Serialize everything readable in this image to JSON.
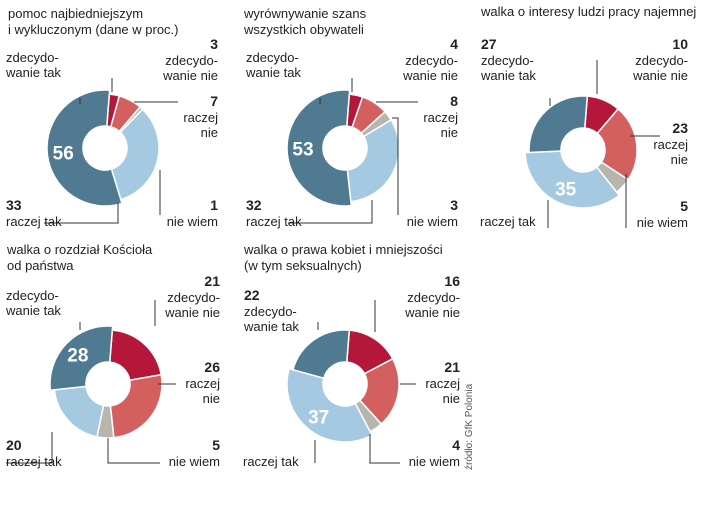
{
  "source": "źródło: GfK Polonia",
  "colors": {
    "zdecydowanie_tak": "#4f7a91",
    "raczej_tak": "#a6c9e2",
    "nie_wiem": "#b7b6ae",
    "raczej_nie": "#d45f5f",
    "zdecydowanie_nie": "#b5173a"
  },
  "chart_data": [
    {
      "type": "pie",
      "title": [
        "pomoc najbiedniejszym",
        "i wykluczonym (dane w proc.)"
      ],
      "slices": [
        {
          "label": [
            "zdecydo-",
            "wanie nie"
          ],
          "value": 3
        },
        {
          "label": [
            "raczej",
            "nie"
          ],
          "value": 7
        },
        {
          "label": [
            "nie wiem"
          ],
          "value": 1
        },
        {
          "label": [
            "raczej tak"
          ],
          "value": 33
        },
        {
          "label": [
            "zdecydo-",
            "wanie tak"
          ],
          "value": 56
        }
      ]
    },
    {
      "type": "pie",
      "title": [
        "wyrównywanie szans",
        "wszystkich obywateli"
      ],
      "slices": [
        {
          "label": [
            "zdecydo-",
            "wanie nie"
          ],
          "value": 4
        },
        {
          "label": [
            "raczej",
            "nie"
          ],
          "value": 8
        },
        {
          "label": [
            "nie wiem"
          ],
          "value": 3
        },
        {
          "label": [
            "raczej tak"
          ],
          "value": 32
        },
        {
          "label": [
            "zdecydo-",
            "wanie tak"
          ],
          "value": 53
        }
      ]
    },
    {
      "type": "pie",
      "title": [
        "walka o interesy ludzi pracy najemnej"
      ],
      "slices": [
        {
          "label": [
            "zdecydo-",
            "wanie nie"
          ],
          "value": 10
        },
        {
          "label": [
            "raczej",
            "nie"
          ],
          "value": 23
        },
        {
          "label": [
            "nie wiem"
          ],
          "value": 5
        },
        {
          "label": [
            "raczej tak"
          ],
          "value": 35
        },
        {
          "label": [
            "zdecydo-",
            "wanie tak"
          ],
          "value": 27
        }
      ]
    },
    {
      "type": "pie",
      "title": [
        "walka o rozdział Kościoła",
        "od państwa"
      ],
      "slices": [
        {
          "label": [
            "zdecydo-",
            "wanie nie"
          ],
          "value": 21
        },
        {
          "label": [
            "raczej",
            "nie"
          ],
          "value": 26
        },
        {
          "label": [
            "nie wiem"
          ],
          "value": 5
        },
        {
          "label": [
            "raczej tak"
          ],
          "value": 20
        },
        {
          "label": [
            "zdecydo-",
            "wanie tak"
          ],
          "value": 28
        }
      ]
    },
    {
      "type": "pie",
      "title": [
        "walka o prawa kobiet i mniejszości",
        "(w tym seksualnych)"
      ],
      "slices": [
        {
          "label": [
            "zdecydo-",
            "wanie nie"
          ],
          "value": 16
        },
        {
          "label": [
            "raczej",
            "nie"
          ],
          "value": 21
        },
        {
          "label": [
            "nie wiem"
          ],
          "value": 4
        },
        {
          "label": [
            "raczej tak"
          ],
          "value": 37
        },
        {
          "label": [
            "zdecydo-",
            "wanie tak"
          ],
          "value": 22
        }
      ]
    }
  ]
}
